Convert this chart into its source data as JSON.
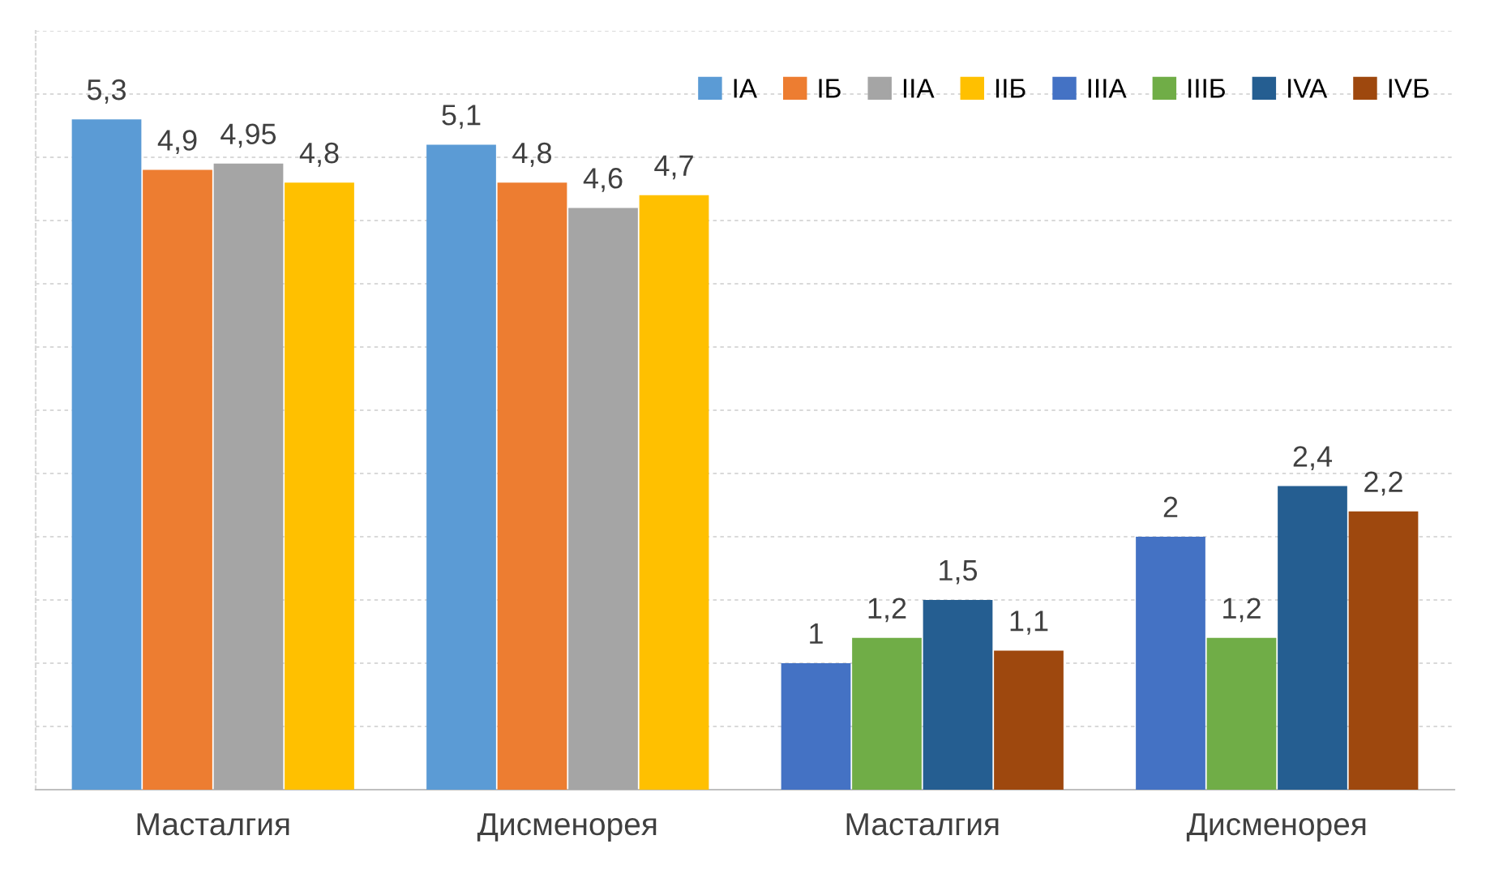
{
  "chart_data": {
    "type": "bar",
    "categories": [
      "Масталгия",
      "Дисменорея",
      "Масталгия",
      "Дисменорея"
    ],
    "series": [
      {
        "name": "IA",
        "color": "#5b9bd5",
        "values": [
          5.3,
          5.1,
          null,
          null
        ],
        "value_labels": [
          "5,3",
          "5,1",
          null,
          null
        ]
      },
      {
        "name": "IБ",
        "color": "#ed7d31",
        "values": [
          4.9,
          4.8,
          null,
          null
        ],
        "value_labels": [
          "4,9",
          "4,8",
          null,
          null
        ]
      },
      {
        "name": "IIA",
        "color": "#a5a5a5",
        "values": [
          4.95,
          4.6,
          null,
          null
        ],
        "value_labels": [
          "4,95",
          "4,6",
          null,
          null
        ]
      },
      {
        "name": "IIБ",
        "color": "#ffc000",
        "values": [
          4.8,
          4.7,
          null,
          null
        ],
        "value_labels": [
          "4,8",
          "4,7",
          null,
          null
        ]
      },
      {
        "name": "IIIA",
        "color": "#4472c4",
        "values": [
          null,
          null,
          1,
          2
        ],
        "value_labels": [
          null,
          null,
          "1",
          "2"
        ]
      },
      {
        "name": "IIIБ",
        "color": "#70ad47",
        "values": [
          null,
          null,
          1.2,
          1.2
        ],
        "value_labels": [
          null,
          null,
          "1,2",
          "1,2"
        ]
      },
      {
        "name": "IVA",
        "color": "#255e91",
        "values": [
          null,
          null,
          1.5,
          2.4
        ],
        "value_labels": [
          null,
          null,
          "1,5",
          "2,4"
        ]
      },
      {
        "name": "IVБ",
        "color": "#9e480e",
        "values": [
          null,
          null,
          1.1,
          2.2
        ],
        "value_labels": [
          null,
          null,
          "1,1",
          "2,2"
        ]
      }
    ],
    "ylim": [
      0,
      6
    ],
    "yticks": [
      {
        "value": 0,
        "label": null
      },
      {
        "value": 0.5,
        "label": null
      },
      {
        "value": 1,
        "label": null
      },
      {
        "value": 1.5,
        "label": null
      },
      {
        "value": 2,
        "label": null
      },
      {
        "value": 2.5,
        "label": null
      },
      {
        "value": 3,
        "label": null
      },
      {
        "value": 3.5,
        "label": null
      },
      {
        "value": 4,
        "label": null
      },
      {
        "value": 4.5,
        "label": null
      },
      {
        "value": 5,
        "label": null
      },
      {
        "value": 5.5,
        "label": null
      },
      {
        "value": 6,
        "label": null
      }
    ],
    "tick_labels": "x",
    "grid": "y",
    "legend": "top right"
  }
}
